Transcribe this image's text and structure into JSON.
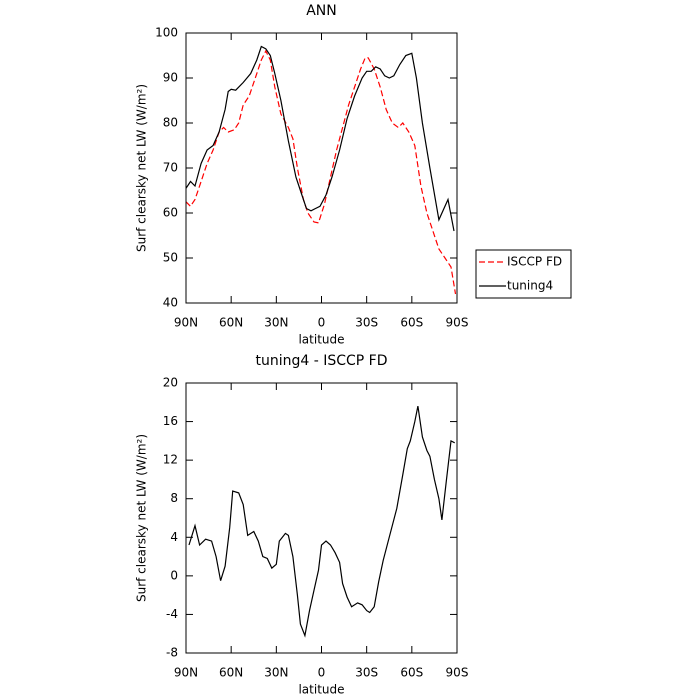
{
  "chart_data": [
    {
      "type": "line",
      "title": "ANN",
      "xlabel": "latitude",
      "ylabel": "Surf clearsky net LW (W/m²)",
      "xlim": [
        90,
        -90
      ],
      "ylim": [
        40,
        100
      ],
      "xticks": [
        {
          "value": 90,
          "label": "90N"
        },
        {
          "value": 60,
          "label": "60N"
        },
        {
          "value": 30,
          "label": "30N"
        },
        0,
        {
          "value": -30,
          "label": "30S"
        },
        {
          "value": -60,
          "label": "60S"
        },
        {
          "value": -90,
          "label": "90S"
        }
      ],
      "yticks": [
        40,
        50,
        60,
        70,
        80,
        90,
        100
      ],
      "legend": "right",
      "series": [
        {
          "name": "ISCCP FD",
          "color": "#ff0000",
          "dash": true,
          "x": [
            90,
            87,
            84,
            80,
            76,
            72,
            68,
            65,
            62,
            58,
            55,
            52,
            48,
            44,
            40,
            37,
            34,
            31,
            27,
            22,
            19,
            16,
            12,
            9,
            5,
            2,
            -2,
            -6,
            -10,
            -14,
            -18,
            -22,
            -26,
            -29,
            -31,
            -35,
            -39,
            -43,
            -47,
            -51,
            -54,
            -58,
            -62,
            -66,
            -70,
            -74,
            -78,
            -82,
            -86,
            -89
          ],
          "values": [
            62.5,
            61.5,
            63,
            67,
            71,
            74,
            78,
            79,
            78,
            78.5,
            80,
            84,
            86,
            90,
            94,
            96,
            94,
            88,
            82,
            79,
            76.5,
            70,
            63,
            60,
            58,
            57.8,
            62,
            68,
            74,
            79,
            84,
            88,
            92,
            94.5,
            94.5,
            92,
            88,
            83,
            80,
            79,
            80,
            78,
            75,
            66,
            60,
            56,
            52,
            50,
            48,
            42
          ]
        },
        {
          "name": "tuning4",
          "color": "#000000",
          "dash": false,
          "x": [
            90,
            87,
            84,
            80,
            76,
            72,
            68,
            64,
            62,
            60,
            57,
            52,
            47,
            43,
            40,
            37,
            34,
            31,
            27,
            22,
            17,
            13,
            10,
            7,
            4,
            1,
            -3,
            -7,
            -12,
            -17,
            -22,
            -27,
            -30,
            -33,
            -36,
            -39,
            -42,
            -45,
            -48,
            -52,
            -56,
            -60,
            -63,
            -67,
            -72,
            -78,
            -84,
            -88
          ],
          "values": [
            65.5,
            67,
            66,
            71,
            74,
            75,
            78,
            83,
            87,
            87.5,
            87.3,
            89,
            91,
            94,
            97,
            96.5,
            95,
            91,
            85,
            76,
            68,
            64,
            61,
            60.5,
            61,
            61.5,
            64,
            68,
            74,
            81,
            86,
            90,
            91.5,
            91.5,
            92.5,
            92,
            90.5,
            90,
            90.5,
            93,
            95,
            95.5,
            90,
            80,
            70,
            58.5,
            63,
            56
          ]
        }
      ]
    },
    {
      "type": "line",
      "title": "tuning4 - ISCCP FD",
      "xlabel": "latitude",
      "ylabel": "Surf clearsky net LW (W/m²)",
      "xlim": [
        90,
        -90
      ],
      "ylim": [
        -8,
        20
      ],
      "xticks": [
        {
          "value": 90,
          "label": "90N"
        },
        {
          "value": 60,
          "label": "60N"
        },
        {
          "value": 30,
          "label": "30N"
        },
        0,
        {
          "value": -30,
          "label": "30S"
        },
        {
          "value": -60,
          "label": "60S"
        },
        {
          "value": -90,
          "label": "90S"
        }
      ],
      "yticks": [
        -8,
        -4,
        0,
        4,
        8,
        12,
        16,
        20
      ],
      "color": "#000000",
      "x": [
        88,
        84,
        81,
        77,
        73,
        70,
        67,
        64,
        61,
        59,
        55,
        52,
        49,
        45,
        42,
        39,
        36,
        33,
        30,
        28,
        24,
        22,
        19,
        16,
        14,
        11,
        8,
        5,
        2,
        0,
        -3,
        -6,
        -9,
        -12,
        -14,
        -17,
        -20,
        -24,
        -27,
        -30,
        -32,
        -35,
        -38,
        -41,
        -44,
        -50,
        -54,
        -57,
        -59,
        -62,
        -64,
        -67,
        -70,
        -72,
        -75,
        -78,
        -80,
        -83,
        -86,
        -88.5
      ],
      "values": [
        3.2,
        5.2,
        3.2,
        3.8,
        3.6,
        2,
        -0.5,
        1,
        5,
        8.8,
        8.6,
        7.4,
        4.2,
        4.6,
        3.6,
        2,
        1.8,
        0.8,
        1.2,
        3.6,
        4.4,
        4.2,
        2,
        -2,
        -5,
        -6.2,
        -3.6,
        -1.5,
        0.6,
        3.2,
        3.6,
        3.2,
        2.4,
        1.4,
        -0.8,
        -2.2,
        -3.2,
        -2.8,
        -3,
        -3.6,
        -3.8,
        -3.2,
        -0.6,
        1.6,
        3.4,
        7,
        10.5,
        13.2,
        14,
        16,
        17.6,
        14.4,
        13,
        12.4,
        10,
        8,
        5.8,
        10,
        14,
        13.8
      ]
    }
  ]
}
